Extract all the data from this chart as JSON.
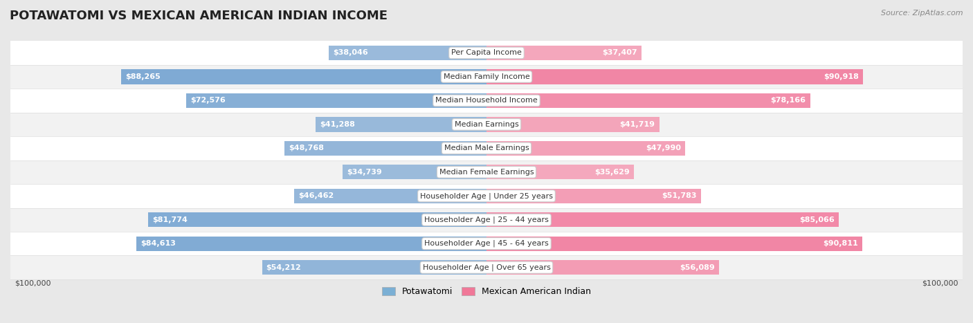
{
  "title": "POTAWATOMI VS MEXICAN AMERICAN INDIAN INCOME",
  "source": "Source: ZipAtlas.com",
  "categories": [
    "Per Capita Income",
    "Median Family Income",
    "Median Household Income",
    "Median Earnings",
    "Median Male Earnings",
    "Median Female Earnings",
    "Householder Age | Under 25 years",
    "Householder Age | 25 - 44 years",
    "Householder Age | 45 - 64 years",
    "Householder Age | Over 65 years"
  ],
  "potawatomi_values": [
    38046,
    88265,
    72576,
    41288,
    48768,
    34739,
    46462,
    81774,
    84613,
    54212
  ],
  "mexican_values": [
    37407,
    90918,
    78166,
    41719,
    47990,
    35629,
    51783,
    85066,
    90811,
    56089
  ],
  "potawatomi_labels": [
    "$38,046",
    "$88,265",
    "$72,576",
    "$41,288",
    "$48,768",
    "$34,739",
    "$46,462",
    "$81,774",
    "$84,613",
    "$54,212"
  ],
  "mexican_labels": [
    "$37,407",
    "$90,918",
    "$78,166",
    "$41,719",
    "$47,990",
    "$35,629",
    "$51,783",
    "$85,066",
    "$90,811",
    "$56,089"
  ],
  "max_value": 100000,
  "blue_light": "#aec6e0",
  "blue_dark": "#6b9ecf",
  "pink_light": "#f5bfcc",
  "pink_dark": "#f07097",
  "row_bg_white": "#ffffff",
  "row_bg_light": "#f2f2f2",
  "background_color": "#e8e8e8",
  "legend_blue": "#7bafd4",
  "legend_pink": "#f07898",
  "inside_label_color": "#ffffff",
  "outside_label_color": "#555555",
  "center_label_color": "#333333",
  "center_label_bg": "#ffffff",
  "center_label_border": "#cccccc"
}
